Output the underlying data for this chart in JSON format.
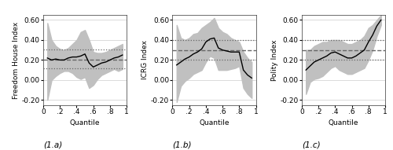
{
  "panels": [
    {
      "label": "(1.a)",
      "ylabel": "Freedom House Index",
      "xlabel": "Quantile",
      "ylim": [
        -0.25,
        0.65
      ],
      "yticks": [
        -0.2,
        0.0,
        0.2,
        0.4,
        0.6
      ],
      "ytick_labels": [
        "-0.20",
        "0.00",
        "0.20",
        "0.40",
        "0.60"
      ],
      "ols_coef": 0.2,
      "ols_ci_upper": 0.305,
      "ols_ci_lower": 0.115,
      "quantiles": [
        0.05,
        0.1,
        0.15,
        0.2,
        0.25,
        0.3,
        0.35,
        0.4,
        0.45,
        0.5,
        0.55,
        0.6,
        0.65,
        0.7,
        0.75,
        0.8,
        0.85,
        0.9,
        0.95
      ],
      "qr_coef": [
        0.22,
        0.2,
        0.21,
        0.2,
        0.2,
        0.22,
        0.23,
        0.23,
        0.24,
        0.26,
        0.17,
        0.13,
        0.15,
        0.17,
        0.18,
        0.2,
        0.22,
        0.23,
        0.25
      ],
      "qr_upper": [
        0.57,
        0.4,
        0.34,
        0.31,
        0.3,
        0.32,
        0.36,
        0.4,
        0.48,
        0.5,
        0.4,
        0.28,
        0.27,
        0.27,
        0.28,
        0.3,
        0.32,
        0.34,
        0.36
      ],
      "qr_lower": [
        -0.2,
        0.0,
        0.04,
        0.07,
        0.09,
        0.09,
        0.07,
        0.03,
        0.01,
        0.03,
        -0.08,
        -0.05,
        0.01,
        0.05,
        0.07,
        0.09,
        0.11,
        0.09,
        0.11
      ]
    },
    {
      "label": "(1.b)",
      "ylabel": "ICRG Index",
      "xlabel": "Quantile",
      "ylim": [
        -0.25,
        0.65
      ],
      "yticks": [
        -0.2,
        0.0,
        0.2,
        0.4,
        0.6
      ],
      "ytick_labels": [
        "-0.20",
        "0.00",
        "0.20",
        "0.40",
        "0.60"
      ],
      "ols_coef": 0.3,
      "ols_ci_upper": 0.4,
      "ols_ci_lower": 0.2,
      "quantiles": [
        0.05,
        0.1,
        0.15,
        0.2,
        0.25,
        0.3,
        0.35,
        0.4,
        0.45,
        0.5,
        0.55,
        0.6,
        0.65,
        0.7,
        0.75,
        0.8,
        0.85,
        0.9,
        0.95
      ],
      "qr_coef": [
        0.15,
        0.18,
        0.21,
        0.23,
        0.26,
        0.28,
        0.31,
        0.38,
        0.41,
        0.42,
        0.32,
        0.3,
        0.29,
        0.28,
        0.28,
        0.28,
        0.1,
        0.05,
        0.02
      ],
      "qr_upper": [
        0.55,
        0.42,
        0.4,
        0.42,
        0.46,
        0.47,
        0.52,
        0.55,
        0.58,
        0.62,
        0.52,
        0.48,
        0.46,
        0.42,
        0.4,
        0.38,
        0.28,
        0.22,
        0.18
      ],
      "qr_lower": [
        -0.22,
        -0.06,
        -0.01,
        0.02,
        0.06,
        0.08,
        0.1,
        0.18,
        0.24,
        0.22,
        0.1,
        0.1,
        0.1,
        0.11,
        0.12,
        0.14,
        -0.08,
        -0.14,
        -0.18
      ]
    },
    {
      "label": "(1.c)",
      "ylabel": "Polity Index",
      "xlabel": "Quantile",
      "ylim": [
        -0.25,
        0.65
      ],
      "yticks": [
        -0.2,
        0.0,
        0.2,
        0.4,
        0.6
      ],
      "ytick_labels": [
        "-0.20",
        "0.00",
        "0.20",
        "0.40",
        "0.60"
      ],
      "ols_coef": 0.3,
      "ols_ci_upper": 0.4,
      "ols_ci_lower": 0.2,
      "quantiles": [
        0.05,
        0.1,
        0.15,
        0.2,
        0.25,
        0.3,
        0.35,
        0.4,
        0.45,
        0.5,
        0.55,
        0.6,
        0.65,
        0.7,
        0.75,
        0.8,
        0.85,
        0.9,
        0.95
      ],
      "qr_coef": [
        0.1,
        0.14,
        0.18,
        0.2,
        0.22,
        0.24,
        0.27,
        0.28,
        0.26,
        0.24,
        0.22,
        0.22,
        0.24,
        0.27,
        0.3,
        0.38,
        0.45,
        0.54,
        0.6
      ],
      "qr_upper": [
        0.3,
        0.3,
        0.34,
        0.36,
        0.38,
        0.38,
        0.4,
        0.4,
        0.4,
        0.38,
        0.36,
        0.36,
        0.38,
        0.4,
        0.44,
        0.52,
        0.55,
        0.6,
        0.65
      ],
      "qr_lower": [
        -0.14,
        -0.02,
        0.01,
        0.02,
        0.04,
        0.08,
        0.12,
        0.14,
        0.1,
        0.08,
        0.06,
        0.06,
        0.08,
        0.1,
        0.12,
        0.2,
        0.3,
        0.44,
        0.55
      ]
    }
  ],
  "bg_color": "#ffffff",
  "plot_bg": "#ffffff",
  "ci_color": "#c0c0c0",
  "ols_color": "#666666",
  "qr_color": "#000000",
  "ols_linestyle": "--",
  "qr_linestyle": "-",
  "fontsize": 6.5,
  "label_fontsize": 7.5
}
